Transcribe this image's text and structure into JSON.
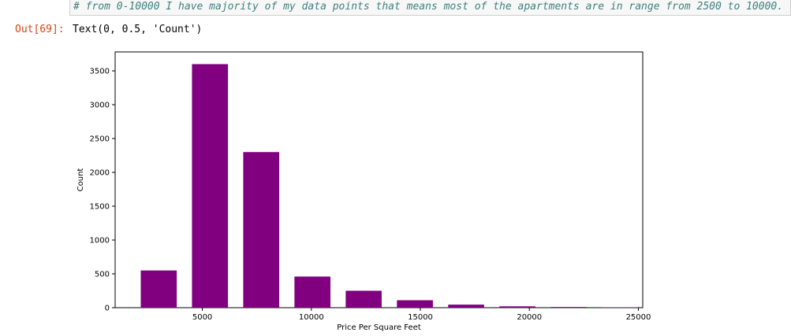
{
  "notebook": {
    "comment": "# from 0-10000 I have majority of my data points that means most of the apartments are in range from 2500 to 10000.",
    "out_prompt": "Out[69]:",
    "out_text": "Text(0, 0.5, 'Count')"
  },
  "colors": {
    "bar": "#800080",
    "comment": "#408080",
    "out_prompt": "#d84315"
  },
  "chart_data": {
    "type": "bar",
    "title": "",
    "xlabel": "Price Per Square Feet",
    "ylabel": "Count",
    "xlim": [
      1000,
      25200
    ],
    "ylim": [
      0,
      3780
    ],
    "bar_width": 1650,
    "x": [
      3000,
      5350,
      7700,
      10050,
      12400,
      14750,
      17100,
      19450,
      21800,
      24150
    ],
    "values": [
      550,
      3600,
      2300,
      460,
      250,
      110,
      45,
      20,
      10,
      5
    ],
    "x_ticks": [
      5000,
      10000,
      15000,
      20000,
      25000
    ],
    "x_tick_labels": [
      "5000",
      "10000",
      "15000",
      "20000",
      "25000"
    ],
    "y_ticks": [
      0,
      500,
      1000,
      1500,
      2000,
      2500,
      3000,
      3500
    ],
    "y_tick_labels": [
      "0",
      "500",
      "1000",
      "1500",
      "2000",
      "2500",
      "3000",
      "3500"
    ],
    "grid": false,
    "legend": "none"
  }
}
